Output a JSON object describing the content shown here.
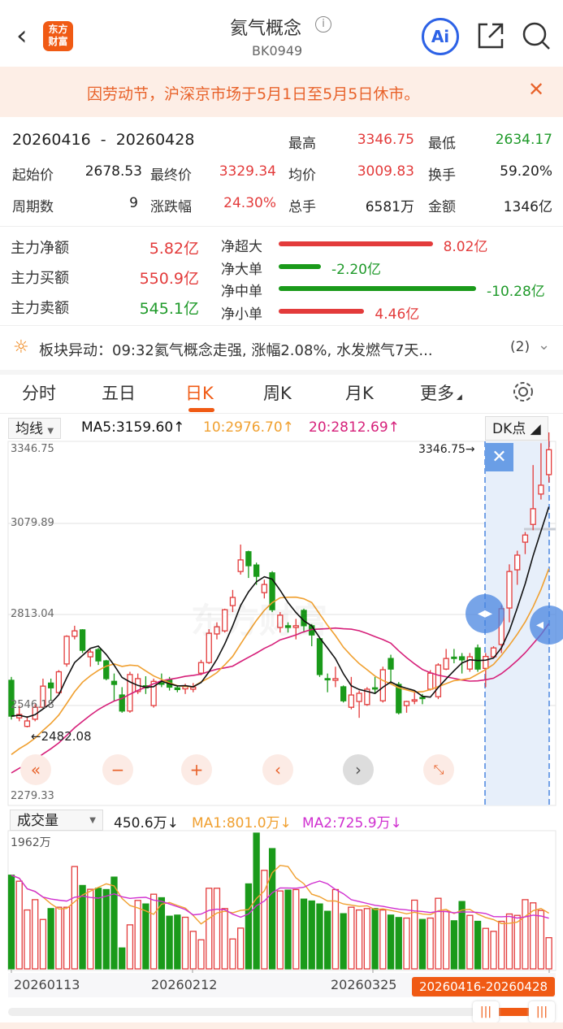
{
  "header": {
    "title": "氦气概念",
    "code": "BK0949",
    "logo_text": "东方财富",
    "ai_label": "Ai"
  },
  "banner": {
    "text": "因劳动节，沪深京市场于5月1日至5月5日休市。"
  },
  "stats": {
    "range": "20260416  -  20260428",
    "high_label": "最高",
    "high": "3346.75",
    "low_label": "最低",
    "low": "2634.17",
    "open_label": "起始价",
    "open": "2678.53",
    "close_label": "最终价",
    "close": "3329.34",
    "avg_label": "均价",
    "avg": "3009.83",
    "turnover_label": "换手",
    "turnover": "59.20%",
    "periods_label": "周期数",
    "periods": "9",
    "change_label": "涨跌幅",
    "change": "24.30%",
    "volume_label": "总手",
    "volume": "6581万",
    "amount_label": "金额",
    "amount": "1346亿"
  },
  "funds": {
    "rows": [
      {
        "label": "主力净额",
        "value": "5.82亿",
        "color": "red"
      },
      {
        "label": "主力买额",
        "value": "550.9亿",
        "color": "red"
      },
      {
        "label": "主力卖额",
        "value": "545.1亿",
        "color": "green"
      }
    ],
    "bars": [
      {
        "label": "净超大",
        "value": "8.02亿",
        "amount": 8.02
      },
      {
        "label": "净大单",
        "value": "-2.20亿",
        "amount": -2.2
      },
      {
        "label": "净中单",
        "value": "-10.28亿",
        "amount": -10.28
      },
      {
        "label": "净小单",
        "value": "4.46亿",
        "amount": 4.46
      }
    ]
  },
  "alert": {
    "text": "板块异动：09:32氦气概念走强, 涨幅2.08%, 水发燃气7天...",
    "count": "(2)"
  },
  "tabs": [
    {
      "label": "分时"
    },
    {
      "label": "五日"
    },
    {
      "label": "日K",
      "active": true
    },
    {
      "label": "周K"
    },
    {
      "label": "月K"
    },
    {
      "label": "更多"
    }
  ],
  "legend": {
    "indicator": "均线",
    "ma5": "MA5:3159.60↑",
    "ma10": "10:2976.70↑",
    "ma20": "20:2812.69↑",
    "dk": "DK点"
  },
  "vol_legend": {
    "indicator": "成交量",
    "vol": "450.6万↓",
    "ma1": "MA1:801.0万↓",
    "ma2": "MA2:725.9万↓",
    "max": "1962万"
  },
  "colors": {
    "up": "#e33b3b",
    "down": "#1a9a1a",
    "ma5": "#111111",
    "ma10": "#f0a030",
    "ma20": "#d6207a",
    "vma2": "#d030d0",
    "accent": "#f05a14",
    "highlight": "#4a86e0"
  },
  "chart_data": {
    "type": "candlestick",
    "y_ticks": [
      "3346.75",
      "3079.89",
      "2813.04",
      "2546.18",
      "2279.33"
    ],
    "ylim": [
      2279.33,
      3346.75
    ],
    "high_mark": "3346.75→",
    "low_mark": "←2482.08",
    "x_ticks": [
      "20260113",
      "20260212",
      "20260325"
    ],
    "selected_range": "20260416-20260428",
    "ohlc": [
      [
        2620,
        2515,
        2630,
        2505
      ],
      [
        2510,
        2520,
        2545,
        2500
      ],
      [
        2485,
        2501,
        2515,
        2482.08
      ],
      [
        2506,
        2541,
        2550,
        2500
      ],
      [
        2541,
        2603,
        2625,
        2538
      ],
      [
        2612,
        2598,
        2625,
        2560
      ],
      [
        2584,
        2645,
        2650,
        2580
      ],
      [
        2668,
        2749,
        2752,
        2660
      ],
      [
        2749,
        2765,
        2780,
        2740
      ],
      [
        2768,
        2708,
        2770,
        2700
      ],
      [
        2689,
        2703,
        2710,
        2660
      ],
      [
        2710,
        2677,
        2715,
        2665
      ],
      [
        2677,
        2625,
        2680,
        2620
      ],
      [
        2617,
        2608,
        2640,
        2560
      ],
      [
        2577,
        2530,
        2600,
        2525
      ],
      [
        2530,
        2637,
        2645,
        2525
      ],
      [
        2587,
        2625,
        2640,
        2580
      ],
      [
        2604,
        2598,
        2632,
        2580
      ],
      [
        2546,
        2617,
        2625,
        2540
      ],
      [
        2612,
        2610,
        2640,
        2600
      ],
      [
        2622,
        2600,
        2630,
        2590
      ],
      [
        2598,
        2593,
        2605,
        2585
      ],
      [
        2595,
        2602,
        2610,
        2580
      ],
      [
        2594,
        2600,
        2612,
        2585
      ],
      [
        2641,
        2672,
        2680,
        2635
      ],
      [
        2672,
        2758,
        2770,
        2668
      ],
      [
        2756,
        2777,
        2790,
        2740
      ],
      [
        2765,
        2827,
        2830,
        2760
      ],
      [
        2839,
        2863,
        2885,
        2820
      ],
      [
        2939,
        2973,
        3018,
        2930
      ],
      [
        2997,
        2956,
        3000,
        2920
      ],
      [
        2958,
        2925,
        2965,
        2900
      ],
      [
        2877,
        2901,
        2915,
        2860
      ],
      [
        2935,
        2827,
        2940,
        2820
      ],
      [
        2775,
        2811,
        2820,
        2760
      ],
      [
        2780,
        2775,
        2790,
        2760
      ],
      [
        2775,
        2780,
        2800,
        2740
      ],
      [
        2825,
        2780,
        2830,
        2760
      ],
      [
        2780,
        2753,
        2785,
        2720
      ],
      [
        2742,
        2637,
        2745,
        2630
      ],
      [
        2625,
        2622,
        2640,
        2585
      ],
      [
        2620,
        2625,
        2660,
        2600
      ],
      [
        2601,
        2560,
        2605,
        2555
      ],
      [
        2541,
        2577,
        2630,
        2535
      ],
      [
        2558,
        2582,
        2590,
        2510
      ],
      [
        2549,
        2594,
        2600,
        2545
      ],
      [
        2598,
        2595,
        2630,
        2580
      ],
      [
        2560,
        2651,
        2660,
        2555
      ],
      [
        2684,
        2653,
        2695,
        2610
      ],
      [
        2608,
        2525,
        2615,
        2520
      ],
      [
        2546,
        2558,
        2560,
        2525
      ],
      [
        2559,
        2563,
        2590,
        2550
      ],
      [
        2570,
        2567,
        2580,
        2550
      ],
      [
        2594,
        2641,
        2650,
        2590
      ],
      [
        2572,
        2665,
        2670,
        2565
      ],
      [
        2653,
        2684,
        2712,
        2650
      ],
      [
        2688,
        2684,
        2712,
        2670
      ],
      [
        2689,
        2680,
        2700,
        2640
      ],
      [
        2653,
        2689,
        2700,
        2645
      ],
      [
        2715,
        2653,
        2725,
        2645
      ],
      [
        2655,
        2690,
        2700,
        2600
      ],
      [
        2689,
        2715,
        2720,
        2685
      ],
      [
        2725,
        2830,
        2840,
        2700
      ],
      [
        2832,
        2939,
        2960,
        2790
      ],
      [
        2944,
        2987,
        3000,
        2900
      ],
      [
        3025,
        3046,
        3055,
        2990
      ],
      [
        3077,
        3123,
        3251,
        3060
      ],
      [
        3166,
        3192,
        3315,
        3150
      ],
      [
        3223,
        3296,
        3346.75,
        3200
      ]
    ],
    "volume": [
      1354,
      1267,
      851,
      1000,
      714,
      871,
      891,
      891,
      1479,
      1205,
      1150,
      1165,
      1146,
      1326,
      302,
      636,
      989,
      938,
      1079,
      1028,
      761,
      777,
      746,
      542,
      420,
      1165,
      1165,
      871,
      432,
      589,
      1228,
      1962,
      1424,
      1738,
      1126,
      1138,
      1146,
      1008,
      981,
      938,
      832,
      1146,
      797,
      891,
      851,
      871,
      871,
      851,
      777,
      742,
      734,
      993,
      714,
      734,
      1020,
      832,
      695,
      973,
      773,
      687,
      585,
      542,
      687,
      793,
      773,
      1000,
      954,
      844,
      450.6
    ],
    "volume_ylim": [
      0,
      1962
    ]
  }
}
